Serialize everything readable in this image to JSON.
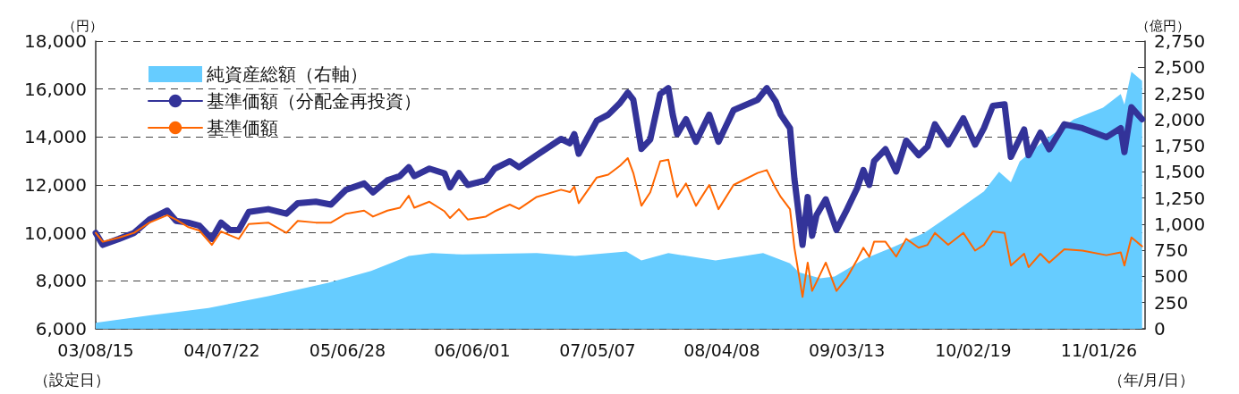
{
  "chart_data": {
    "type": "line",
    "ylabel": "（円）",
    "y2label": "（億円）",
    "legend": "top left",
    "grid": "y",
    "xlim": [
      "2003-08-15",
      "2011-05-31"
    ],
    "xticks": [
      {
        "value": "2003-08-15",
        "label": "03/08/15"
      },
      {
        "value": "2004-07-22",
        "label": "04/07/22"
      },
      {
        "value": "2005-06-28",
        "label": "05/06/28"
      },
      {
        "value": "2006-06-01",
        "label": "06/06/01"
      },
      {
        "value": "2007-05-07",
        "label": "07/05/07"
      },
      {
        "value": "2008-04-08",
        "label": "08/04/08"
      },
      {
        "value": "2009-03-13",
        "label": "09/03/13"
      },
      {
        "value": "2010-02-19",
        "label": "10/02/19"
      },
      {
        "value": "2011-01-26",
        "label": "11/01/26"
      }
    ],
    "ylim": [
      6000,
      18000
    ],
    "yticks": [
      {
        "value": 6000,
        "label": "6,000"
      },
      {
        "value": 8000,
        "label": "8,000"
      },
      {
        "value": 10000,
        "label": "10,000"
      },
      {
        "value": 12000,
        "label": "12,000"
      },
      {
        "value": 14000,
        "label": "14,000"
      },
      {
        "value": 16000,
        "label": "16,000"
      },
      {
        "value": 18000,
        "label": "18,000"
      }
    ],
    "y2lim": [
      0,
      2750
    ],
    "y2ticks": [
      0,
      250,
      500,
      750,
      {
        "value": 1000,
        "label": "1,000"
      },
      {
        "value": 1250,
        "label": "1,250"
      },
      {
        "value": 1500,
        "label": "1,500"
      },
      {
        "value": 1750,
        "label": "1,750"
      },
      {
        "value": 2000,
        "label": "2,000"
      },
      {
        "value": 2250,
        "label": "2,250"
      },
      {
        "value": 2500,
        "label": "2,500"
      },
      {
        "value": 2750,
        "label": "2,750"
      }
    ],
    "x": [
      "2003-08-15",
      "2003-09-03",
      "2003-10-17",
      "2003-11-27",
      "2004-01-08",
      "2004-02-25",
      "2004-03-20",
      "2004-04-21",
      "2004-05-22",
      "2004-06-25",
      "2004-07-20",
      "2004-08-13",
      "2004-09-06",
      "2004-10-03",
      "2004-11-25",
      "2005-01-13",
      "2005-02-13",
      "2005-04-03",
      "2005-05-14",
      "2005-06-24",
      "2005-08-12",
      "2005-09-05",
      "2005-10-14",
      "2005-11-17",
      "2005-12-11",
      "2005-12-26",
      "2006-02-05",
      "2006-03-18",
      "2006-04-02",
      "2006-04-26",
      "2006-05-20",
      "2006-07-08",
      "2006-08-01",
      "2006-09-11",
      "2006-10-06",
      "2006-11-23",
      "2007-01-28",
      "2007-02-21",
      "2007-03-05",
      "2007-03-17",
      "2007-05-05",
      "2007-06-05",
      "2007-07-07",
      "2007-07-28",
      "2007-08-12",
      "2007-09-03",
      "2007-09-27",
      "2007-10-24",
      "2007-11-15",
      "2007-11-27",
      "2007-12-09",
      "2008-01-02",
      "2008-01-29",
      "2008-03-05",
      "2008-03-30",
      "2008-05-10",
      "2008-07-14",
      "2008-08-08",
      "2008-09-01",
      "2008-09-15",
      "2008-10-10",
      "2008-10-22",
      "2008-11-13",
      "2008-11-27",
      "2008-12-09",
      "2008-12-21",
      "2009-01-15",
      "2009-02-13",
      "2009-03-14",
      "2009-04-10",
      "2009-04-27",
      "2009-05-13",
      "2009-05-26",
      "2009-06-26",
      "2009-07-25",
      "2009-08-21",
      "2009-09-24",
      "2009-10-18",
      "2009-11-07",
      "2009-12-13",
      "2010-01-23",
      "2010-02-24",
      "2010-03-20",
      "2010-04-13",
      "2010-05-15",
      "2010-06-01",
      "2010-07-07",
      "2010-07-19",
      "2010-08-20",
      "2010-09-13",
      "2010-10-24",
      "2010-12-12",
      "2011-02-15",
      "2011-03-26",
      "2011-04-05",
      "2011-04-24",
      "2011-05-23"
    ],
    "series": [
      {
        "name": "純資産総額（右軸）",
        "type": "area",
        "axis": "y2",
        "color": "#66ccff",
        "x": [
          "2003-08-15",
          "2004-01-08",
          "2004-06-16",
          "2004-11-25",
          "2005-05-07",
          "2005-08-31",
          "2005-12-11",
          "2006-02-12",
          "2006-05-06",
          "2006-11-23",
          "2007-03-07",
          "2007-07-24",
          "2007-09-03",
          "2007-11-15",
          "2008-03-22",
          "2008-07-29",
          "2008-10-10",
          "2008-11-03",
          "2008-12-31",
          "2009-02-08",
          "2009-05-01",
          "2009-07-20",
          "2009-10-08",
          "2009-12-30",
          "2010-03-20",
          "2010-04-30",
          "2010-06-01",
          "2010-06-25",
          "2010-08-30",
          "2010-11-18",
          "2011-02-06",
          "2011-03-26",
          "2011-04-05",
          "2011-04-24",
          "2011-05-23"
        ],
        "values": [
          57,
          128,
          199,
          312,
          440,
          554,
          696,
          724,
          710,
          724,
          696,
          738,
          653,
          724,
          653,
          724,
          625,
          540,
          483,
          500,
          671,
          786,
          914,
          1114,
          1314,
          1500,
          1400,
          1600,
          1800,
          2000,
          2114,
          2243,
          2143,
          2457,
          2371
        ]
      },
      {
        "name": "基準価額（分配金再投資）",
        "color": "#333399",
        "values": [
          10000,
          9500,
          9750,
          10000,
          10560,
          10930,
          10500,
          10430,
          10300,
          9750,
          10430,
          10120,
          10120,
          10870,
          10990,
          10800,
          11240,
          11300,
          11180,
          11800,
          12060,
          11690,
          12190,
          12370,
          12740,
          12370,
          12680,
          12480,
          11900,
          12500,
          12000,
          12190,
          12680,
          12990,
          12740,
          13240,
          13920,
          13740,
          14120,
          13300,
          14680,
          14930,
          15420,
          15850,
          15550,
          13500,
          13900,
          15790,
          16040,
          14930,
          14120,
          14740,
          13800,
          14930,
          13800,
          15120,
          15550,
          16040,
          15490,
          14930,
          14370,
          12250,
          9500,
          11500,
          9880,
          10740,
          11400,
          10120,
          10990,
          11860,
          12620,
          12000,
          12990,
          13490,
          12560,
          13850,
          13240,
          13600,
          14530,
          13680,
          14780,
          13680,
          14370,
          15300,
          15360,
          13170,
          14310,
          13240,
          14180,
          13490,
          14530,
          14370,
          13990,
          14370,
          13370,
          15240,
          14740
        ]
      },
      {
        "name": "基準価額",
        "color": "#ff6600",
        "values": [
          10000,
          9630,
          9800,
          10000,
          10430,
          10740,
          10550,
          10250,
          10100,
          9500,
          10060,
          9900,
          9750,
          10370,
          10430,
          10000,
          10500,
          10430,
          10430,
          10800,
          10930,
          10680,
          10930,
          11050,
          11550,
          11050,
          11300,
          10900,
          10620,
          10990,
          10560,
          10680,
          10900,
          11180,
          11000,
          11500,
          11800,
          11700,
          11930,
          11240,
          12310,
          12430,
          12800,
          13120,
          12500,
          11130,
          11690,
          12990,
          13050,
          12200,
          11500,
          12060,
          11130,
          12000,
          10990,
          12000,
          12500,
          12620,
          11870,
          11500,
          10990,
          9380,
          7330,
          8760,
          7580,
          7950,
          8760,
          7580,
          8140,
          8880,
          9380,
          9000,
          9630,
          9630,
          9010,
          9750,
          9380,
          9500,
          10000,
          9500,
          10000,
          9260,
          9500,
          10060,
          10000,
          8640,
          9130,
          8570,
          9130,
          8760,
          9320,
          9260,
          9070,
          9190,
          8640,
          9810,
          9440
        ]
      }
    ],
    "annotations": [
      "（設定日）",
      "（年/月/日）"
    ]
  }
}
